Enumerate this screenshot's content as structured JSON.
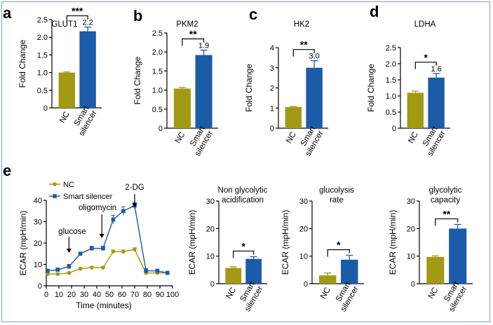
{
  "colors": {
    "nc": "#a29a14",
    "smart": "#1c5ba8",
    "frame": "#7f9fcf",
    "axis": "#000000"
  },
  "chart_data": [
    {
      "panel": "a",
      "type": "bar",
      "title": "GLUT1",
      "ylabel": "Fold Change",
      "categories": [
        "NC",
        "Smart silencer"
      ],
      "values": [
        1.0,
        2.17
      ],
      "errors": [
        0.02,
        0.12
      ],
      "value_label": "2.2",
      "significance": "***",
      "ylim": [
        0,
        2.5
      ],
      "yticks": [
        0,
        0.5,
        1.0,
        1.5,
        2.0,
        2.5
      ],
      "ytick_labels": [
        "0",
        "0.5",
        "1.0",
        "1.5",
        "2.0",
        "2.5"
      ]
    },
    {
      "panel": "b",
      "type": "bar",
      "title": "PKM2",
      "ylabel": "Fold Change",
      "categories": [
        "NC",
        "Smart silencer"
      ],
      "values": [
        1.04,
        1.92
      ],
      "errors": [
        0.03,
        0.13
      ],
      "value_label": "1.9",
      "significance": "**",
      "ylim": [
        0,
        2.5
      ],
      "yticks": [
        0,
        0.5,
        1.0,
        1.5,
        2.0,
        2.5
      ],
      "ytick_labels": [
        "0",
        "0.5",
        "1.0",
        "1.5",
        "2.0",
        "2.5"
      ]
    },
    {
      "panel": "c",
      "type": "bar",
      "title": "HK2",
      "ylabel": "Fold Change",
      "categories": [
        "NC",
        "Smart silencer"
      ],
      "values": [
        1.05,
        3.0
      ],
      "errors": [
        0.03,
        0.35
      ],
      "value_label": "3.0",
      "significance": "**",
      "ylim": [
        0,
        4
      ],
      "yticks": [
        0,
        1,
        2,
        3,
        4
      ],
      "ytick_labels": [
        "0",
        "1",
        "2",
        "3",
        "4"
      ]
    },
    {
      "panel": "d",
      "type": "bar",
      "title": "LDHA",
      "ylabel": "Fold Change",
      "categories": [
        "NC",
        "Smart silencer"
      ],
      "values": [
        1.1,
        1.57
      ],
      "errors": [
        0.05,
        0.13
      ],
      "value_label": "1.6",
      "significance": "*",
      "ylim": [
        0,
        2.5
      ],
      "yticks": [
        0,
        0.5,
        1.0,
        1.5,
        2.0,
        2.5
      ],
      "ytick_labels": [
        "0",
        "0.5",
        "1.0",
        "1.5",
        "2.0",
        "2.5"
      ]
    },
    {
      "panel": "e",
      "type": "line",
      "xlabel": "Time (minutes)",
      "ylabel": "ECAR (mpH/min)",
      "xlim": [
        0,
        100
      ],
      "ylim": [
        0,
        40
      ],
      "xticks": [
        0,
        10,
        20,
        30,
        40,
        50,
        60,
        70,
        80,
        90,
        100
      ],
      "yticks": [
        0,
        10,
        20,
        30,
        40
      ],
      "x": [
        1,
        9,
        18,
        27,
        36,
        45,
        53,
        61,
        70,
        79,
        88,
        96
      ],
      "series": [
        {
          "name": "NC",
          "values": [
            5.5,
            5.5,
            6,
            8,
            8.5,
            8.5,
            16,
            16,
            17,
            6,
            6,
            6
          ],
          "errors": [
            0.5,
            0.5,
            0.5,
            0.5,
            0.5,
            0.5,
            0.8,
            0.8,
            0.8,
            0.5,
            0.5,
            0.5
          ]
        },
        {
          "name": "Smart silencer",
          "values": [
            7,
            7.5,
            9,
            15,
            17.5,
            17.5,
            31,
            35,
            37.5,
            7,
            7,
            6
          ],
          "errors": [
            0.8,
            0.8,
            1,
            0.8,
            1,
            1,
            2,
            2,
            1.5,
            1,
            0.8,
            0.8
          ]
        }
      ],
      "annotations": [
        {
          "text": "glucose",
          "x": 18
        },
        {
          "text": "oligomycin",
          "x": 44
        },
        {
          "text": "2-DG",
          "x": 70
        }
      ]
    },
    {
      "panel": "e2",
      "type": "bar",
      "title": [
        "Non glycolytic",
        "acidification"
      ],
      "ylabel": "ECAR (mpH/min)",
      "categories": [
        "NC",
        "Smart silencer"
      ],
      "values": [
        5.7,
        9.0
      ],
      "errors": [
        0.4,
        0.8
      ],
      "significance": "*",
      "ylim": [
        0,
        30
      ],
      "yticks": [
        0,
        10,
        20,
        30
      ],
      "ytick_labels": [
        "0",
        "10",
        "20",
        "30"
      ]
    },
    {
      "panel": "e3",
      "type": "bar",
      "title": [
        "glucolysis",
        "rate"
      ],
      "ylabel": "ECAR (mpH/min)",
      "categories": [
        "NC",
        "Smart silencer"
      ],
      "values": [
        3.0,
        8.7
      ],
      "errors": [
        0.9,
        1.6
      ],
      "significance": "*",
      "ylim": [
        0,
        30
      ],
      "yticks": [
        0,
        10,
        20,
        30
      ],
      "ytick_labels": [
        "0",
        "10",
        "20",
        "30"
      ]
    },
    {
      "panel": "e4",
      "type": "bar",
      "title": [
        "glycolytic",
        "capacity"
      ],
      "ylabel": "ECAR (mpH/min)",
      "categories": [
        "NC",
        "Smart silencer"
      ],
      "values": [
        9.7,
        20.0
      ],
      "errors": [
        0.4,
        1.5
      ],
      "significance": "**",
      "ylim": [
        0,
        30
      ],
      "yticks": [
        0,
        10,
        20,
        30
      ],
      "ytick_labels": [
        "0",
        "10",
        "20",
        "30"
      ]
    }
  ]
}
